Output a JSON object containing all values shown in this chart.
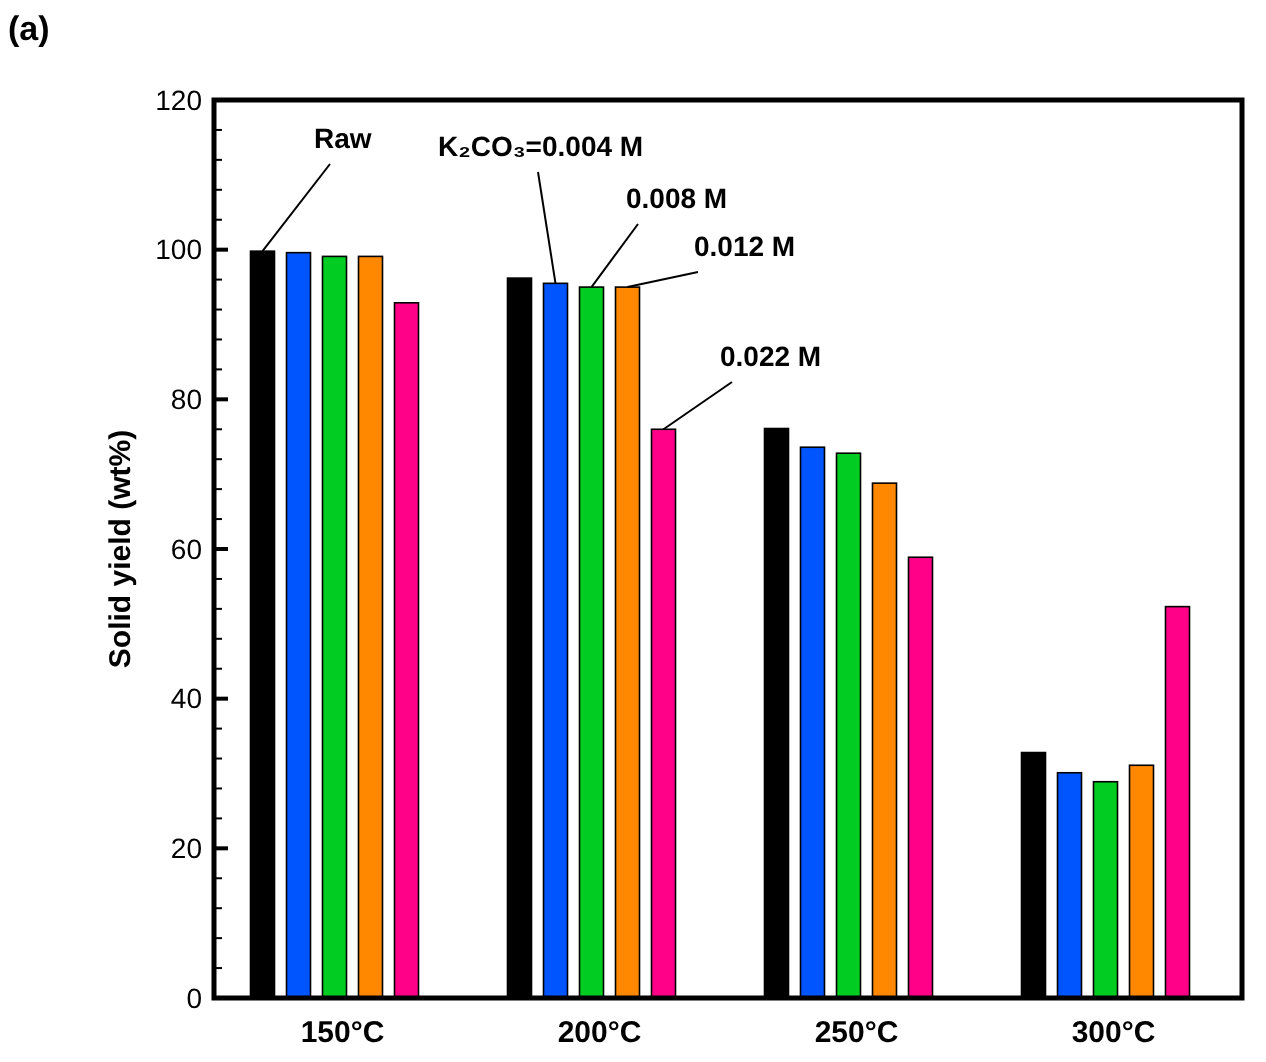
{
  "chart_data": {
    "type": "bar",
    "title": "(a)",
    "ylabel": "Solid yield (wt%)",
    "categories": [
      "150°C",
      "200°C",
      "250°C",
      "300°C"
    ],
    "series": [
      {
        "name": "Raw",
        "color": "#000000",
        "values": [
          99.8,
          96.2,
          76.1,
          32.8
        ]
      },
      {
        "name": "K₂CO₃=0.004 M",
        "color": "#0055ff",
        "values": [
          99.6,
          95.5,
          73.6,
          30.1
        ]
      },
      {
        "name": "0.008 M",
        "color": "#00cc22",
        "values": [
          99.1,
          95,
          72.8,
          28.9
        ]
      },
      {
        "name": "0.012 M",
        "color": "#ff8800",
        "values": [
          99.1,
          95,
          68.8,
          31.1
        ]
      },
      {
        "name": "0.022 M",
        "color": "#ff0088",
        "values": [
          92.9,
          76,
          58.9,
          52.3
        ]
      }
    ],
    "ylim": [
      0,
      120
    ],
    "yticks": [
      0,
      {
        "value": 4,
        "label": null
      },
      {
        "value": 8,
        "label": null
      },
      {
        "value": 12,
        "label": null
      },
      {
        "value": 16,
        "label": null
      },
      20,
      {
        "value": 24,
        "label": null
      },
      {
        "value": 28,
        "label": null
      },
      {
        "value": 32,
        "label": null
      },
      {
        "value": 36,
        "label": null
      },
      40,
      {
        "value": 44,
        "label": null
      },
      {
        "value": 48,
        "label": null
      },
      {
        "value": 52,
        "label": null
      },
      {
        "value": 56,
        "label": null
      },
      60,
      {
        "value": 64,
        "label": null
      },
      {
        "value": 68,
        "label": null
      },
      {
        "value": 72,
        "label": null
      },
      {
        "value": 76,
        "label": null
      },
      80,
      {
        "value": 84,
        "label": null
      },
      {
        "value": 88,
        "label": null
      },
      {
        "value": 92,
        "label": null
      },
      {
        "value": 96,
        "label": null
      },
      100,
      {
        "value": 104,
        "label": null
      },
      {
        "value": 108,
        "label": null
      },
      {
        "value": 112,
        "label": null
      },
      {
        "value": 116,
        "label": null
      },
      120
    ],
    "grid": false,
    "legend": false
  }
}
